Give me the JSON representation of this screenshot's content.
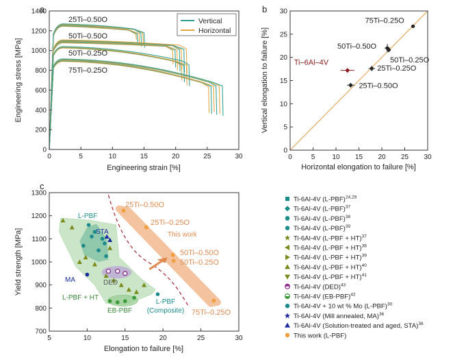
{
  "chart_data": [
    {
      "panel": "a",
      "type": "line",
      "title": "",
      "xlabel": "Engineering strain [%]",
      "ylabel": "Engineering stress [MPa]",
      "xlim": [
        0,
        30
      ],
      "ylim": [
        0,
        1400
      ],
      "xticks": [
        "0",
        "5",
        "10",
        "15",
        "20",
        "25",
        "30"
      ],
      "yticks": [
        "0",
        "200",
        "400",
        "600",
        "800",
        "1000",
        "1200",
        "1400"
      ],
      "legend": {
        "position": "top-right",
        "entries": [
          {
            "name": "Vertical",
            "color": "#2a9d8f"
          },
          {
            "name": "Horizontal",
            "color": "#e6a23c"
          }
        ]
      },
      "annotations": [
        "25Ti–0.50O",
        "50Ti–0.50O",
        "50Ti–0.25O",
        "75Ti–0.25O"
      ],
      "series": [
        {
          "name": "25Ti-0.50O",
          "peak": 1260,
          "end_stress": 1220,
          "fracture": [
            13.8,
            14.0,
            14.3,
            14.6,
            14.9,
            15.1
          ],
          "fracture_stress": [
            1110,
            1080,
            1050,
            1040,
            1060,
            1030
          ]
        },
        {
          "name": "50Ti-0.50O",
          "peak": 1095,
          "end_stress": 1060,
          "fracture": [
            19.6,
            20.0,
            20.3,
            20.7,
            21.0,
            21.4,
            21.8
          ],
          "fracture_stress": [
            860,
            830,
            800,
            790,
            810,
            780,
            770
          ]
        },
        {
          "name": "50Ti-0.25O",
          "peak": 1035,
          "end_stress": 900,
          "fracture": [
            21.0,
            21.4,
            21.8,
            22.2
          ],
          "fracture_stress": [
            700,
            680,
            650,
            640
          ]
        },
        {
          "name": "75Ti-0.25O",
          "peak": 905,
          "end_stress": 690,
          "fracture": [
            25.3,
            25.7,
            26.1,
            26.5,
            27.0,
            27.5
          ],
          "fracture_stress": [
            370,
            360,
            380,
            350,
            360,
            340
          ]
        }
      ]
    },
    {
      "panel": "b",
      "type": "scatter",
      "xlabel": "Horizontal elongation to failure [%]",
      "ylabel": "Vertical elongation to failure [%]",
      "xlim": [
        0,
        30
      ],
      "ylim": [
        0,
        30
      ],
      "xticks": [
        "0",
        "5",
        "10",
        "15",
        "20",
        "25",
        "30"
      ],
      "yticks": [
        "0",
        "5",
        "10",
        "15",
        "20",
        "25",
        "30"
      ],
      "points": [
        {
          "label": "Ti–6Al–4V",
          "x": 12.5,
          "y": 17.2,
          "xerr": 1.5,
          "yerr": 0.5,
          "color": "#8b1a1a"
        },
        {
          "label": "25Ti–0.50O",
          "x": 13.2,
          "y": 14.0,
          "xerr": 0.8,
          "yerr": 0.5,
          "color": "#222222"
        },
        {
          "label": "25Ti–0.25O",
          "x": 17.8,
          "y": 17.6,
          "xerr": 0.7,
          "yerr": 0.6,
          "color": "#222222"
        },
        {
          "label": "50Ti–0.50O",
          "x": 21.2,
          "y": 22.0,
          "xerr": 0.6,
          "yerr": 0.9,
          "color": "#222222"
        },
        {
          "label": "50Ti–0.25O",
          "x": 21.5,
          "y": 21.6,
          "xerr": 0.5,
          "yerr": 0.5,
          "color": "#222222"
        },
        {
          "label": "75Ti–0.25O",
          "x": 26.8,
          "y": 26.7,
          "xerr": 0.4,
          "yerr": 0.3,
          "color": "#222222"
        }
      ]
    },
    {
      "panel": "c",
      "type": "scatter",
      "xlabel": "Elongation to failure [%]",
      "ylabel": "Yield strength [MPa]",
      "xlim": [
        5,
        30
      ],
      "ylim": [
        700,
        1300
      ],
      "xticks": [
        "5",
        "10",
        "15",
        "20",
        "25",
        "30"
      ],
      "yticks": [
        "700",
        "800",
        "900",
        "1000",
        "1100",
        "1200",
        "1300"
      ],
      "region_labels": [
        "L-PBF",
        "STA",
        "MA",
        "DED",
        "L-PBF + HT",
        "EB-PBF",
        "L-PBF (Composite)",
        "This work"
      ],
      "point_labels": [
        "25Ti–0.50O",
        "25Ti–0.25O",
        "50Ti–0.50O",
        "50Ti–0.25O",
        "75Ti–0.25O"
      ],
      "this_work": [
        {
          "label": "25Ti–0.50O",
          "x": 14.8,
          "y": 1222
        },
        {
          "label": "25Ti–0.25O",
          "x": 17.8,
          "y": 1150
        },
        {
          "label": "50Ti–0.50O",
          "x": 21.3,
          "y": 1030
        },
        {
          "label": "50Ti–0.25O",
          "x": 21.4,
          "y": 1005
        },
        {
          "label": "75Ti–0.25O",
          "x": 26.7,
          "y": 832
        }
      ],
      "literature": [
        {
          "x": 10.2,
          "y": 1160,
          "group": "L-PBF"
        },
        {
          "x": 11.0,
          "y": 1130,
          "group": "L-PBF"
        },
        {
          "x": 10.6,
          "y": 1110,
          "group": "L-PBF"
        },
        {
          "x": 12.0,
          "y": 1100,
          "group": "L-PBF"
        },
        {
          "x": 9.5,
          "y": 1070,
          "group": "L-PBF"
        },
        {
          "x": 11.5,
          "y": 1050,
          "group": "L-PBF"
        },
        {
          "x": 12.3,
          "y": 1080,
          "group": "L-PBF"
        },
        {
          "x": 12.5,
          "y": 1025,
          "group": "L-PBF"
        },
        {
          "x": 6.8,
          "y": 1180,
          "group": "HT"
        },
        {
          "x": 8.0,
          "y": 1150,
          "group": "HT"
        },
        {
          "x": 9.0,
          "y": 1000,
          "group": "HT"
        },
        {
          "x": 9.8,
          "y": 1020,
          "group": "HT"
        },
        {
          "x": 11.0,
          "y": 990,
          "group": "HT"
        },
        {
          "x": 12.5,
          "y": 940,
          "group": "HT"
        },
        {
          "x": 13.5,
          "y": 920,
          "group": "HT"
        },
        {
          "x": 14.5,
          "y": 900,
          "group": "HT"
        },
        {
          "x": 15.5,
          "y": 880,
          "group": "HT"
        },
        {
          "x": 16.5,
          "y": 870,
          "group": "HT"
        },
        {
          "x": 17.5,
          "y": 900,
          "group": "HT"
        },
        {
          "x": 13.0,
          "y": 1060,
          "group": "HT"
        },
        {
          "x": 12.8,
          "y": 960,
          "group": "DED"
        },
        {
          "x": 14.0,
          "y": 960,
          "group": "DED"
        },
        {
          "x": 15.0,
          "y": 950,
          "group": "DED"
        },
        {
          "x": 13.0,
          "y": 830,
          "group": "EB-PBF"
        },
        {
          "x": 14.0,
          "y": 825,
          "group": "EB-PBF"
        },
        {
          "x": 15.0,
          "y": 830,
          "group": "EB-PBF"
        },
        {
          "x": 16.2,
          "y": 845,
          "group": "EB-PBF"
        },
        {
          "x": 19.3,
          "y": 860,
          "group": "Composite"
        },
        {
          "x": 10.0,
          "y": 945,
          "group": "MA"
        },
        {
          "x": 13.0,
          "y": 1095,
          "group": "STA"
        },
        {
          "x": 12.6,
          "y": 1110,
          "group": "STA"
        }
      ],
      "legend": [
        {
          "label": "Ti-6Al-4V (L-PBF)",
          "sup": "24,29",
          "marker": "square",
          "color": "#1a8a8a"
        },
        {
          "label": "Ti-6Al-4V (L-PBF)",
          "sup": "37",
          "marker": "diamond",
          "color": "#1a8a8a"
        },
        {
          "label": "Ti-6Al-4V (L-PBF)",
          "sup": "38",
          "marker": "hexagon",
          "color": "#1a8a8a"
        },
        {
          "label": "Ti-6Al-4V (L-PBF)",
          "sup": "39",
          "marker": "circle",
          "color": "#1a8a8a"
        },
        {
          "label": "Ti-6Al-4V (L-PBF + HT)",
          "sup": "37",
          "marker": "star",
          "color": "#7a8a1a"
        },
        {
          "label": "Ti-6Al-4V (L-PBF + HT)",
          "sup": "38",
          "marker": "tri-left",
          "color": "#7a8a1a"
        },
        {
          "label": "Ti-6Al-4V (L-PBF + HT)",
          "sup": "39",
          "marker": "tri-right",
          "color": "#7a8a1a"
        },
        {
          "label": "Ti-6Al-4V (L-PBF + HT)",
          "sup": "40",
          "marker": "tri-up",
          "color": "#7a8a1a"
        },
        {
          "label": "Ti-6Al-4V (L-PBF + HT)",
          "sup": "41",
          "marker": "tri-down",
          "color": "#7a8a1a"
        },
        {
          "label": "Ti-6Al-4V (DED)",
          "sup": "43",
          "marker": "half-circle",
          "color": "#8a2a8a"
        },
        {
          "label": "Ti-6Al-4V (EB-PBF)",
          "sup": "42",
          "marker": "half-circle-green",
          "color": "#3a9a3a"
        },
        {
          "label": "Ti-6Al-4V + 10 wt % Mo (L-PBF)",
          "sup": "30",
          "marker": "circle",
          "color": "#1a8a8a"
        },
        {
          "label": "Ti-6Al-4V (Mill annealed, MA)",
          "sup": "36",
          "marker": "star",
          "color": "#1a2a9a"
        },
        {
          "label": "Ti-6Al-4V (Solution-treated and aged, STA)",
          "sup": "36",
          "marker": "tri-up",
          "color": "#1a2a9a"
        },
        {
          "label": "This work (L-PBF)",
          "sup": "",
          "marker": "circle",
          "color": "#f0a040"
        }
      ]
    }
  ],
  "panel_letters": [
    "a",
    "b",
    "c"
  ],
  "colors": {
    "vertical": "#2a9d8f",
    "horizontal": "#e6a23c",
    "diag": "#e8b070",
    "thiswork": "#f0a040",
    "ti64": "#8b1a1a",
    "dashed": "#b0303a",
    "hull_green": "#9fd19a",
    "hull_teal": "#4aa38c",
    "hull_purple": "#b9a6d6",
    "hull_orange": "#f6c9a0"
  }
}
